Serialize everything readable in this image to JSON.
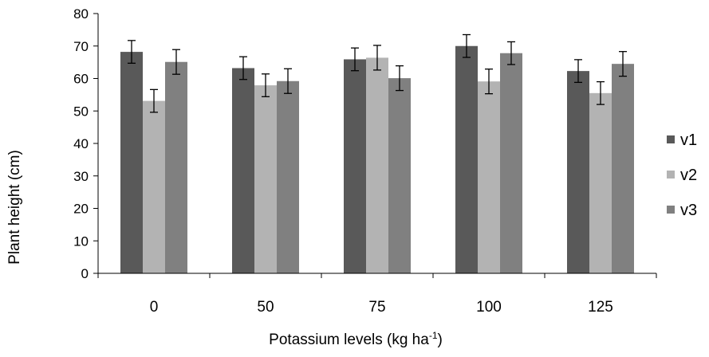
{
  "chart_data": {
    "type": "bar",
    "xlabel": "Potassium levels (kg ha",
    "xlabel_sup": "-1",
    "xlabel_end": ")",
    "ylabel": "Plant height (cm)",
    "categories": [
      "0",
      "50",
      "75",
      "100",
      "125"
    ],
    "ylim": [
      0,
      80
    ],
    "yticks": [
      0,
      10,
      20,
      30,
      40,
      50,
      60,
      70,
      80
    ],
    "grid": false,
    "legend_position": "right",
    "series": [
      {
        "name": "v1",
        "color": "#595959",
        "values": [
          68.2,
          63.2,
          65.9,
          70.0,
          62.3
        ],
        "errors": [
          3.5,
          3.5,
          3.5,
          3.5,
          3.5
        ]
      },
      {
        "name": "v2",
        "color": "#b3b3b3",
        "values": [
          53.1,
          57.9,
          66.4,
          59.1,
          55.5
        ],
        "errors": [
          3.5,
          3.5,
          3.8,
          3.8,
          3.5
        ]
      },
      {
        "name": "v3",
        "color": "#808080",
        "values": [
          65.1,
          59.2,
          60.1,
          67.8,
          64.5
        ],
        "errors": [
          3.8,
          3.8,
          3.8,
          3.5,
          3.8
        ]
      }
    ]
  }
}
